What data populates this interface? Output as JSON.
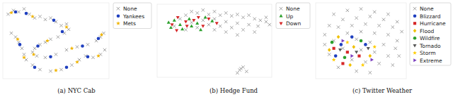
{
  "chart_data": [
    {
      "type": "scatter",
      "title": "(a) NYC Cab",
      "xlim": [
        0,
        100
      ],
      "ylim": [
        0,
        100
      ],
      "tick_labels": false,
      "legend": "right",
      "series": [
        {
          "name": "None",
          "color": "#999999",
          "marker": "x",
          "x": [
            5,
            10,
            15,
            20,
            25,
            30,
            35,
            40,
            45,
            50,
            55,
            60,
            62,
            58,
            52,
            45,
            40,
            35,
            30,
            28,
            32,
            40,
            50,
            60,
            70,
            80,
            88,
            92,
            95,
            8,
            12,
            15,
            18,
            20,
            22,
            28,
            35,
            45,
            55,
            65,
            72,
            78,
            85,
            92,
            96
          ],
          "values": [
            85,
            90,
            88,
            92,
            85,
            80,
            82,
            78,
            80,
            75,
            70,
            72,
            65,
            60,
            55,
            52,
            48,
            45,
            40,
            35,
            30,
            28,
            32,
            38,
            42,
            45,
            50,
            55,
            60,
            60,
            55,
            48,
            40,
            32,
            25,
            18,
            12,
            10,
            12,
            18,
            25,
            30,
            28,
            32,
            38
          ]
        },
        {
          "name": "Yankees",
          "color": "#1f3fbf",
          "marker": "circle",
          "x": [
            12,
            22,
            48,
            56,
            33,
            45,
            75,
            90,
            16,
            30,
            60,
            80
          ],
          "values": [
            88,
            86,
            77,
            62,
            43,
            29,
            43,
            53,
            45,
            15,
            15,
            29
          ]
        },
        {
          "name": "Mets",
          "color": "#f0b400",
          "marker": "star",
          "x": [
            8,
            28,
            60,
            42,
            29,
            65,
            93,
            14,
            20,
            50,
            70,
            90
          ],
          "values": [
            87,
            82,
            68,
            50,
            32,
            40,
            58,
            52,
            28,
            11,
            22,
            30
          ]
        }
      ]
    },
    {
      "type": "scatter",
      "title": "(b) Hedge Fund",
      "xlim": [
        0,
        100
      ],
      "ylim": [
        0,
        100
      ],
      "tick_labels": false,
      "legend": "right",
      "series": [
        {
          "name": "None",
          "color": "#999999",
          "marker": "x",
          "x": [
            20,
            25,
            30,
            35,
            40,
            45,
            50,
            55,
            60,
            65,
            70,
            75,
            80,
            85,
            90,
            95,
            98,
            30,
            40,
            50,
            60,
            70,
            80,
            88,
            55,
            65,
            45,
            35,
            75,
            85,
            60,
            50,
            70,
            95,
            15,
            25,
            72,
            75,
            70,
            78,
            73
          ],
          "values": [
            80,
            85,
            90,
            88,
            92,
            86,
            90,
            85,
            88,
            84,
            86,
            82,
            85,
            80,
            78,
            76,
            72,
            75,
            78,
            80,
            76,
            74,
            72,
            70,
            70,
            68,
            72,
            68,
            65,
            62,
            62,
            65,
            58,
            82,
            70,
            65,
            10,
            14,
            6,
            8,
            12
          ]
        },
        {
          "name": "Up",
          "color": "#2ca02c",
          "marker": "triangle-up",
          "x": [
            10,
            15,
            20,
            28,
            35,
            22,
            42,
            12,
            30,
            38,
            48
          ],
          "values": [
            75,
            78,
            72,
            80,
            74,
            66,
            82,
            68,
            70,
            65,
            77
          ]
        },
        {
          "name": "Down",
          "color": "#d62728",
          "marker": "triangle-down",
          "x": [
            13,
            18,
            25,
            32,
            26,
            40,
            17,
            45,
            36,
            52
          ],
          "values": [
            72,
            82,
            76,
            78,
            70,
            70,
            64,
            80,
            82,
            74
          ]
        }
      ]
    },
    {
      "type": "scatter",
      "title": "(c) Twitter Weather",
      "xlim": [
        0,
        100
      ],
      "ylim": [
        0,
        100
      ],
      "tick_labels": false,
      "legend": "right",
      "series": [
        {
          "name": "None",
          "color": "#999999",
          "marker": "x",
          "x": [
            20,
            35,
            50,
            65,
            80,
            30,
            45,
            60,
            75,
            90,
            15,
            25,
            40,
            55,
            70,
            85,
            95,
            10,
            35,
            50,
            65,
            80,
            90,
            20,
            45,
            60,
            75,
            88,
            30,
            50,
            65,
            80,
            15,
            40,
            55,
            70,
            25,
            45,
            85,
            60,
            10,
            92
          ],
          "values": [
            85,
            90,
            92,
            88,
            85,
            78,
            80,
            82,
            78,
            75,
            70,
            68,
            70,
            72,
            70,
            68,
            62,
            58,
            60,
            62,
            60,
            58,
            50,
            50,
            52,
            48,
            45,
            40,
            40,
            38,
            35,
            30,
            32,
            25,
            22,
            20,
            15,
            10,
            18,
            8,
            45,
            30
          ]
        },
        {
          "name": "Blizzard",
          "color": "#1f3fbf",
          "marker": "circle",
          "x": [
            28,
            40,
            22,
            55
          ],
          "values": [
            45,
            55,
            30,
            45
          ]
        },
        {
          "name": "Hurricane",
          "color": "#d62728",
          "marker": "square",
          "x": [
            35,
            20,
            48,
            30
          ],
          "values": [
            35,
            40,
            30,
            20
          ]
        },
        {
          "name": "Flood",
          "color": "#f0c000",
          "marker": "diamond",
          "x": [
            25,
            42,
            15,
            38,
            60
          ],
          "values": [
            55,
            42,
            38,
            18,
            30
          ]
        },
        {
          "name": "Wildfire",
          "color": "#2ca02c",
          "marker": "circle",
          "x": [
            18,
            50,
            32
          ],
          "values": [
            48,
            50,
            28
          ]
        },
        {
          "name": "Tornado",
          "color": "#555555",
          "marker": "triangle-down",
          "x": [
            45,
            27,
            58
          ],
          "values": [
            35,
            38,
            40
          ]
        },
        {
          "name": "Storm",
          "color": "#ffcc00",
          "marker": "star",
          "x": [
            35,
            20,
            52,
            65
          ],
          "values": [
            48,
            25,
            18,
            42
          ]
        },
        {
          "name": "Extreme",
          "color": "#7b3fbf",
          "marker": "triangle-right",
          "x": [
            40,
            30,
            62
          ],
          "values": [
            30,
            50,
            25
          ]
        }
      ]
    }
  ]
}
